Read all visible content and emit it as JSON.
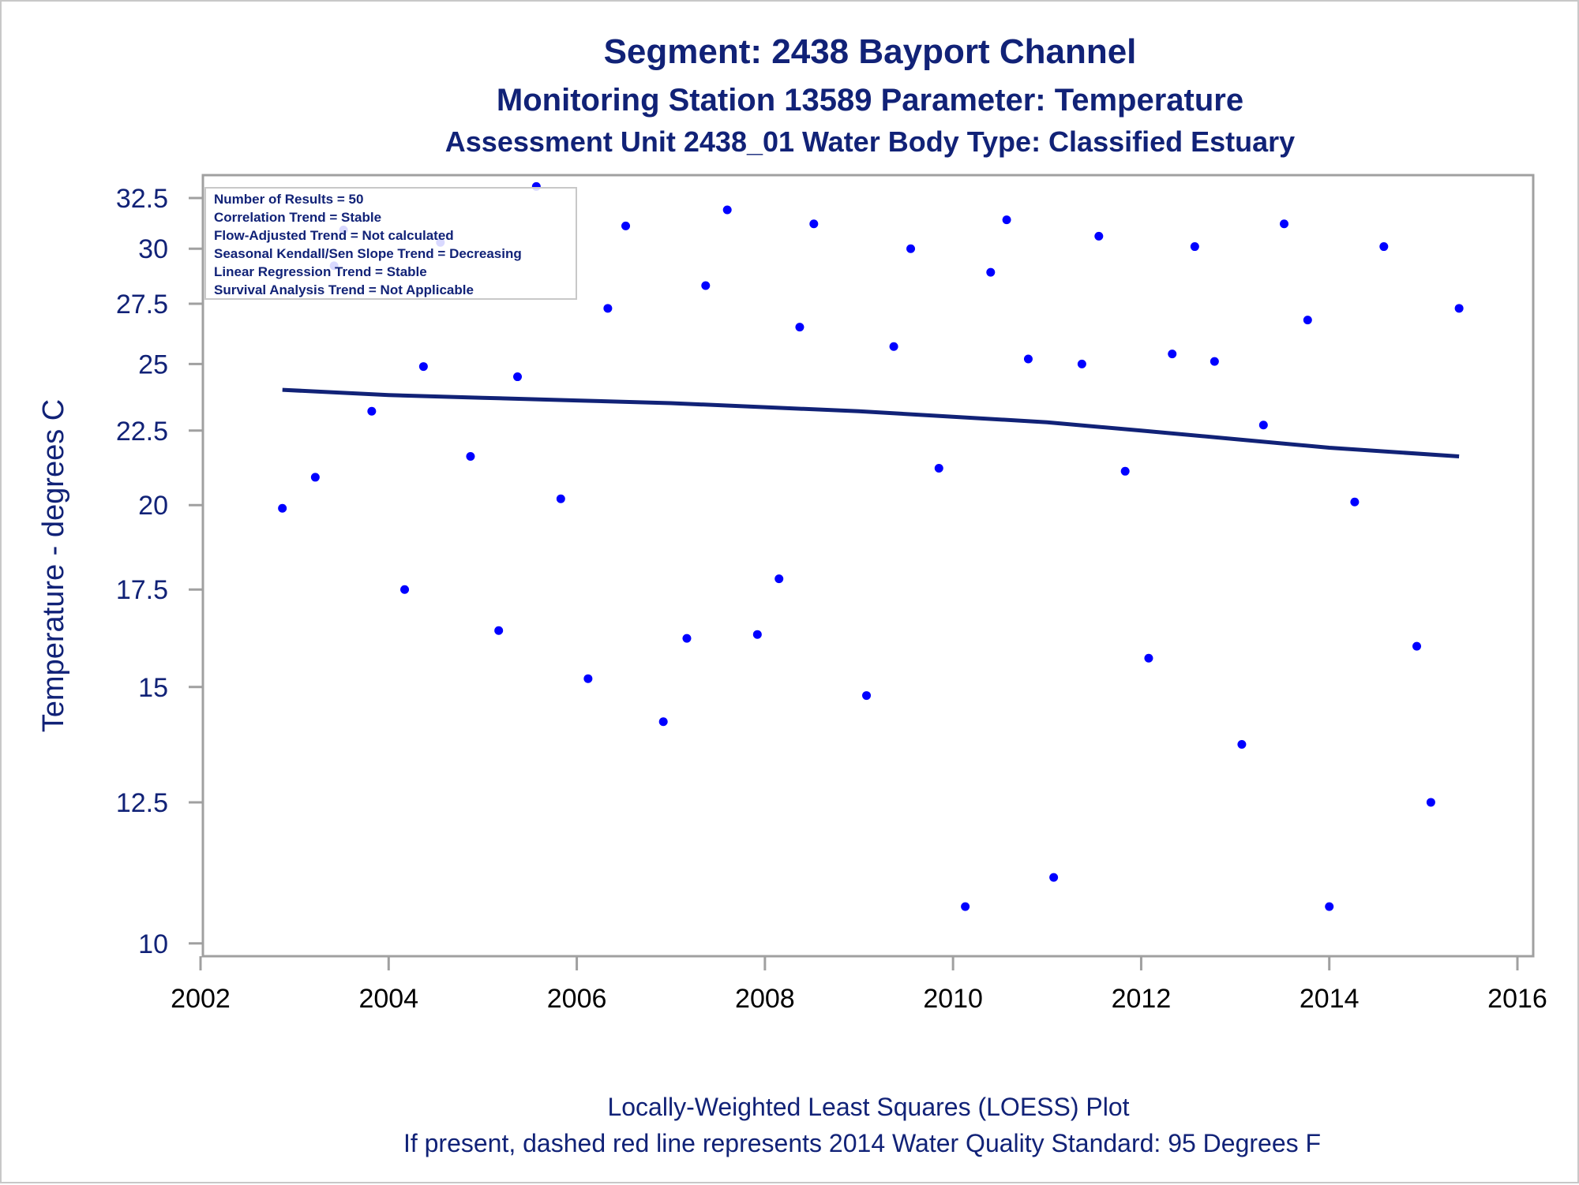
{
  "titles": {
    "line1": "Segment: 2438  Bayport Channel",
    "line2": "Monitoring Station 13589 Parameter: Temperature",
    "line3": "Assessment Unit 2438_01   Water Body Type: Classified Estuary"
  },
  "stats_box": [
    "Number of Results = 50",
    "Correlation Trend = Stable",
    "Flow-Adjusted Trend = Not calculated",
    "Seasonal Kendall/Sen Slope Trend = Decreasing",
    "Linear Regression Trend = Stable",
    "Survival Analysis Trend = Not Applicable"
  ],
  "footnotes": {
    "line1": "Locally-Weighted Least Squares (LOESS) Plot",
    "line2": "If present, dashed red line represents 2014 Water Quality Standard: 95   Degrees F"
  },
  "colors": {
    "title": "#112277",
    "points": "#0000ff",
    "loess_line": "#112277",
    "axis": "#a0a0a0"
  },
  "chart_data": {
    "type": "scatter",
    "ylabel": "Temperature - degrees C",
    "xlabel": "",
    "x_scale": "time (years)",
    "y_scale": "log",
    "xlim": [
      2002,
      2016
    ],
    "ylim": [
      9.8,
      33.7
    ],
    "x_ticks": [
      "2002",
      "2004",
      "2006",
      "2008",
      "2010",
      "2012",
      "2014",
      "2016"
    ],
    "y_ticks": [
      "10",
      "12.5",
      "15",
      "17.5",
      "20",
      "22.5",
      "25",
      "27.5",
      "30",
      "32.5"
    ],
    "grid": false,
    "series": [
      {
        "type": "scatter",
        "x": [
          2002.87,
          2003.22,
          2003.42,
          2003.52,
          2003.82,
          2004.17,
          2004.37,
          2004.55,
          2004.87,
          2005.17,
          2005.37,
          2005.57,
          2005.83,
          2006.12,
          2006.33,
          2006.52,
          2006.92,
          2007.17,
          2007.37,
          2007.6,
          2007.92,
          2008.15,
          2008.37,
          2008.52,
          2009.08,
          2009.37,
          2009.55,
          2009.85,
          2010.13,
          2010.4,
          2010.57,
          2010.8,
          2011.07,
          2011.37,
          2011.55,
          2011.83,
          2012.08,
          2012.33,
          2012.57,
          2012.78,
          2013.07,
          2013.3,
          2013.52,
          2013.77,
          2014.0,
          2014.27,
          2014.58,
          2014.93,
          2015.08,
          2015.38
        ],
        "y": [
          19.9,
          20.9,
          29.2,
          30.9,
          23.2,
          17.5,
          24.9,
          30.3,
          21.6,
          16.4,
          24.5,
          33.1,
          20.2,
          15.2,
          27.3,
          31.1,
          14.2,
          16.2,
          28.3,
          31.9,
          16.3,
          17.8,
          26.5,
          31.2,
          14.8,
          25.7,
          30.0,
          21.2,
          10.6,
          28.9,
          31.4,
          25.2,
          11.1,
          25.0,
          30.6,
          21.1,
          15.7,
          25.4,
          30.1,
          25.1,
          13.7,
          22.7,
          31.2,
          26.8,
          10.6,
          20.1,
          30.1,
          16.0,
          12.5,
          27.3
        ]
      },
      {
        "type": "line",
        "name": "LOESS",
        "x": [
          2002.87,
          2004.0,
          2005.0,
          2006.0,
          2007.0,
          2008.0,
          2009.0,
          2010.0,
          2011.0,
          2012.0,
          2013.0,
          2014.0,
          2015.38
        ],
        "y": [
          24.0,
          23.8,
          23.7,
          23.6,
          23.5,
          23.35,
          23.2,
          23.0,
          22.8,
          22.5,
          22.2,
          21.9,
          21.6
        ]
      }
    ]
  }
}
